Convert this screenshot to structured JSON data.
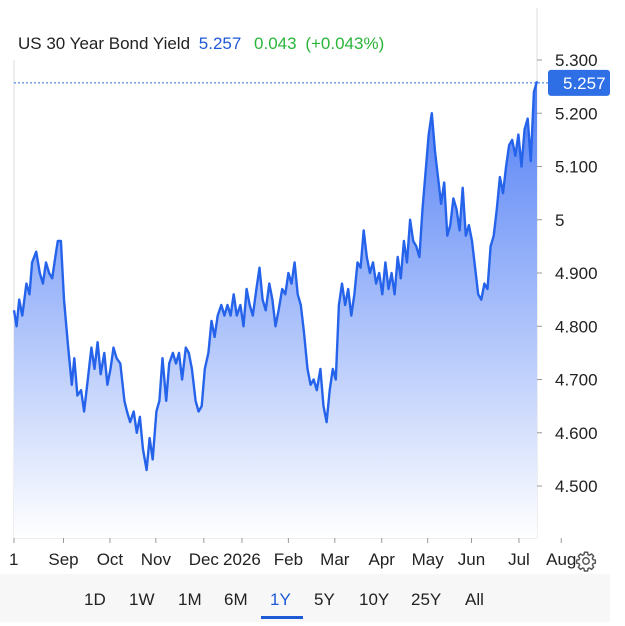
{
  "header": {
    "title": "US 30 Year Bond Yield",
    "last": "5.257",
    "change": "0.043",
    "change_pct": "(+0.043%)"
  },
  "price_badge": "5.257",
  "ranges": [
    "1D",
    "1W",
    "1M",
    "6M",
    "1Y",
    "5Y",
    "10Y",
    "25Y",
    "All"
  ],
  "active_range": "1Y",
  "colors": {
    "line": "#2563eb",
    "fill_top": "#4f7df5",
    "fill_bottom": "#ffffff",
    "badge": "#2f6fe6",
    "up": "#2bb53a",
    "accent": "#1f5ad6"
  },
  "icons": {
    "settings": "gear-icon"
  },
  "chart_data": {
    "type": "area",
    "title": "US 30 Year Bond Yield",
    "ylim": [
      4.4,
      5.3
    ],
    "yticks": [
      "5.300",
      "5.200",
      "5.100",
      "5",
      "4.900",
      "4.800",
      "4.700",
      "4.600",
      "4.500"
    ],
    "ytick_values": [
      5.3,
      5.2,
      5.1,
      5.0,
      4.9,
      4.8,
      4.7,
      4.6,
      4.5
    ],
    "xticks": [
      "1",
      "Sep",
      "Oct",
      "Nov",
      "Dec",
      "2026",
      "Feb",
      "Mar",
      "Apr",
      "May",
      "Jun",
      "Jul",
      "Aug"
    ],
    "xtick_pos": [
      0,
      9.6,
      18.6,
      27.5,
      36.8,
      44.2,
      53.2,
      62.2,
      71.3,
      80.2,
      88.7,
      97.9,
      106.1
    ],
    "last_value": 5.257,
    "series": [
      {
        "values": [
          [
            0,
            4.83
          ],
          [
            0.5,
            4.8
          ],
          [
            1,
            4.85
          ],
          [
            1.6,
            4.82
          ],
          [
            2.4,
            4.88
          ],
          [
            3,
            4.86
          ],
          [
            3.5,
            4.92
          ],
          [
            4.3,
            4.94
          ],
          [
            5,
            4.9
          ],
          [
            5.6,
            4.88
          ],
          [
            6.2,
            4.92
          ],
          [
            6.8,
            4.9
          ],
          [
            7.4,
            4.89
          ],
          [
            8,
            4.93
          ],
          [
            8.5,
            4.96
          ],
          [
            9.1,
            4.96
          ],
          [
            9.7,
            4.85
          ],
          [
            10.5,
            4.76
          ],
          [
            11.2,
            4.69
          ],
          [
            11.7,
            4.74
          ],
          [
            12.3,
            4.67
          ],
          [
            13,
            4.68
          ],
          [
            13.6,
            4.64
          ],
          [
            14.3,
            4.7
          ],
          [
            15,
            4.76
          ],
          [
            15.6,
            4.72
          ],
          [
            16.2,
            4.77
          ],
          [
            16.8,
            4.71
          ],
          [
            17.5,
            4.75
          ],
          [
            18.1,
            4.69
          ],
          [
            18.7,
            4.72
          ],
          [
            19.3,
            4.76
          ],
          [
            19.9,
            4.74
          ],
          [
            20.6,
            4.73
          ],
          [
            21.4,
            4.66
          ],
          [
            21.9,
            4.64
          ],
          [
            22.5,
            4.62
          ],
          [
            23.2,
            4.64
          ],
          [
            23.8,
            4.6
          ],
          [
            24.4,
            4.63
          ],
          [
            25,
            4.57
          ],
          [
            25.7,
            4.53
          ],
          [
            26.3,
            4.59
          ],
          [
            26.9,
            4.55
          ],
          [
            27.6,
            4.64
          ],
          [
            28.2,
            4.66
          ],
          [
            28.8,
            4.74
          ],
          [
            29.5,
            4.66
          ],
          [
            30.1,
            4.73
          ],
          [
            30.8,
            4.75
          ],
          [
            31.4,
            4.73
          ],
          [
            32,
            4.75
          ],
          [
            32.6,
            4.7
          ],
          [
            33.3,
            4.76
          ],
          [
            33.9,
            4.75
          ],
          [
            34.5,
            4.72
          ],
          [
            35.2,
            4.66
          ],
          [
            35.8,
            4.64
          ],
          [
            36.4,
            4.65
          ],
          [
            37,
            4.72
          ],
          [
            37.7,
            4.75
          ],
          [
            38.3,
            4.81
          ],
          [
            38.9,
            4.78
          ],
          [
            39.5,
            4.82
          ],
          [
            40.2,
            4.84
          ],
          [
            40.8,
            4.82
          ],
          [
            41.4,
            4.84
          ],
          [
            42,
            4.82
          ],
          [
            42.6,
            4.86
          ],
          [
            43.2,
            4.82
          ],
          [
            43.9,
            4.84
          ],
          [
            44.5,
            4.8
          ],
          [
            45.1,
            4.87
          ],
          [
            45.7,
            4.84
          ],
          [
            46.3,
            4.82
          ],
          [
            47,
            4.87
          ],
          [
            47.6,
            4.91
          ],
          [
            48.2,
            4.85
          ],
          [
            48.8,
            4.83
          ],
          [
            49.5,
            4.88
          ],
          [
            50.1,
            4.85
          ],
          [
            50.7,
            4.8
          ],
          [
            51.3,
            4.83
          ],
          [
            52,
            4.87
          ],
          [
            52.6,
            4.86
          ],
          [
            53.2,
            4.9
          ],
          [
            53.8,
            4.88
          ],
          [
            54.4,
            4.92
          ],
          [
            55,
            4.86
          ],
          [
            55.6,
            4.84
          ],
          [
            56.2,
            4.79
          ],
          [
            56.9,
            4.72
          ],
          [
            57.5,
            4.69
          ],
          [
            58.1,
            4.7
          ],
          [
            58.7,
            4.68
          ],
          [
            59.4,
            4.72
          ],
          [
            60,
            4.65
          ],
          [
            60.6,
            4.62
          ],
          [
            61.2,
            4.68
          ],
          [
            61.8,
            4.72
          ],
          [
            62.4,
            4.7
          ],
          [
            63,
            4.84
          ],
          [
            63.6,
            4.88
          ],
          [
            64.2,
            4.84
          ],
          [
            64.8,
            4.87
          ],
          [
            65.4,
            4.82
          ],
          [
            66,
            4.86
          ],
          [
            66.6,
            4.92
          ],
          [
            67.2,
            4.91
          ],
          [
            67.8,
            4.98
          ],
          [
            68.4,
            4.93
          ],
          [
            69,
            4.9
          ],
          [
            69.6,
            4.92
          ],
          [
            70.2,
            4.88
          ],
          [
            70.8,
            4.9
          ],
          [
            71.4,
            4.86
          ],
          [
            72,
            4.92
          ],
          [
            72.6,
            4.87
          ],
          [
            73.2,
            4.9
          ],
          [
            73.8,
            4.86
          ],
          [
            74.4,
            4.93
          ],
          [
            75,
            4.89
          ],
          [
            75.6,
            4.96
          ],
          [
            76.2,
            4.92
          ],
          [
            76.8,
            5.0
          ],
          [
            77.4,
            4.96
          ],
          [
            78,
            4.95
          ],
          [
            78.6,
            4.93
          ],
          [
            79.2,
            5.02
          ],
          [
            79.8,
            5.09
          ],
          [
            80.4,
            5.16
          ],
          [
            81,
            5.2
          ],
          [
            81.6,
            5.13
          ],
          [
            82.2,
            5.08
          ],
          [
            82.8,
            5.03
          ],
          [
            83.4,
            5.07
          ],
          [
            84,
            4.97
          ],
          [
            84.6,
            4.99
          ],
          [
            85.2,
            5.04
          ],
          [
            85.8,
            5.02
          ],
          [
            86.4,
            4.98
          ],
          [
            87,
            5.06
          ],
          [
            87.6,
            4.97
          ],
          [
            88.2,
            4.99
          ],
          [
            88.8,
            4.96
          ],
          [
            89.4,
            4.91
          ],
          [
            90,
            4.86
          ],
          [
            90.6,
            4.85
          ],
          [
            91.2,
            4.88
          ],
          [
            91.8,
            4.87
          ],
          [
            92.4,
            4.95
          ],
          [
            93,
            4.97
          ],
          [
            93.6,
            5.02
          ],
          [
            94.2,
            5.08
          ],
          [
            94.8,
            5.05
          ],
          [
            95.4,
            5.1
          ],
          [
            96,
            5.14
          ],
          [
            96.6,
            5.15
          ],
          [
            97.2,
            5.12
          ],
          [
            97.8,
            5.16
          ],
          [
            98.4,
            5.1
          ],
          [
            99,
            5.17
          ],
          [
            99.6,
            5.19
          ],
          [
            100.2,
            5.11
          ],
          [
            100.8,
            5.24
          ],
          [
            101.4,
            5.26
          ]
        ]
      }
    ]
  }
}
